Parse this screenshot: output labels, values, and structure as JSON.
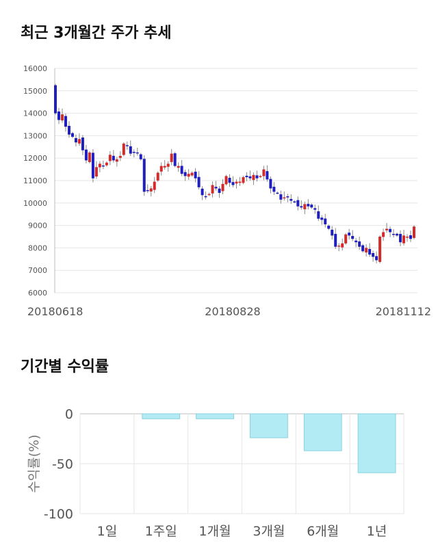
{
  "colors": {
    "up": "#d42a2a",
    "down": "#1f1fbf",
    "wick": "#888888",
    "grid": "#e6e6e6",
    "bar_fill": "#b3ebf4",
    "bar_stroke": "#86d2e0"
  },
  "chart_data": [
    {
      "type": "candlestick",
      "title": "최근 3개월간 주가 추세",
      "ylim": [
        6000,
        16000
      ],
      "y_ticks": [
        "16000",
        "15000",
        "14000",
        "13000",
        "12000",
        "11000",
        "10000",
        "9000",
        "8000",
        "7000",
        "6000"
      ],
      "x_tick_labels": [
        "20180618",
        "20180828",
        "20181112"
      ],
      "grid": true,
      "close_series": [
        14000,
        13700,
        13950,
        13400,
        13050,
        12950,
        12700,
        12850,
        12350,
        11900,
        12250,
        11100,
        11600,
        11750,
        11650,
        11800,
        12150,
        11900,
        11950,
        12100,
        12650,
        12550,
        12200,
        12250,
        12250,
        11950,
        10500,
        10550,
        10650,
        10950,
        11350,
        11650,
        11650,
        11750,
        12200,
        11650,
        11650,
        11300,
        11200,
        11300,
        11350,
        11100,
        10700,
        10350,
        10300,
        10400,
        10800,
        10650,
        10450,
        10850,
        11200,
        10900,
        10800,
        10950,
        10950,
        11150,
        11150,
        11100,
        11250,
        11100,
        11200,
        11500,
        11050,
        10650,
        10500,
        10450,
        10150,
        10250,
        10250,
        10100,
        10050,
        9850,
        9800,
        9950,
        9850,
        9800,
        9700,
        9300,
        9250,
        9050,
        8850,
        8550,
        8050,
        8100,
        8200,
        8600,
        8550,
        8400,
        8250,
        8050,
        7850,
        8000,
        7700,
        7600,
        7450,
        8500,
        8700,
        8850,
        8700,
        8600,
        8550,
        8250,
        8550,
        8500,
        8400,
        8950
      ]
    },
    {
      "type": "bar",
      "title": "기간별 수익률",
      "categories": [
        "1일",
        "1주일",
        "1개월",
        "3개월",
        "6개월",
        "1년"
      ],
      "values": [
        0,
        -5,
        -5,
        -24,
        -37,
        -59
      ],
      "ylabel": "수익률(%)",
      "ylim": [
        -100,
        0
      ],
      "y_ticks": [
        "0",
        "-50",
        "-100"
      ],
      "grid": true
    }
  ]
}
